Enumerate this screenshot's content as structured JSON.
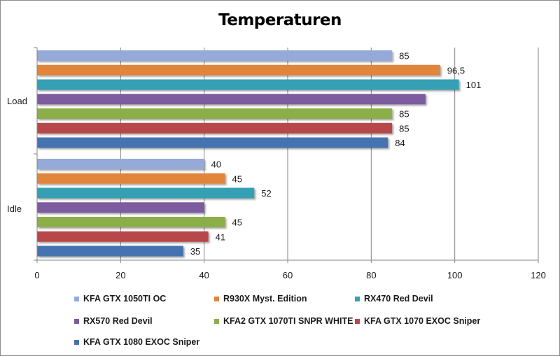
{
  "chart_data": {
    "type": "bar",
    "orientation": "horizontal",
    "title": "Temperaturen",
    "categories": [
      "Load",
      "Idle"
    ],
    "series": [
      {
        "name": "KFA GTX 1050TI OC",
        "color": "#95aad8",
        "values": [
          85,
          40
        ],
        "labels": [
          "85",
          "40"
        ]
      },
      {
        "name": "R930X Myst. Edition",
        "color": "#e1853d",
        "values": [
          96.5,
          45
        ],
        "labels": [
          "96,5",
          "45"
        ]
      },
      {
        "name": "RX470 Red Devil",
        "color": "#35a0b3",
        "values": [
          101,
          52
        ],
        "labels": [
          "101",
          "52"
        ]
      },
      {
        "name": "RX570 Red Devil",
        "color": "#7b5b9e",
        "values": [
          93,
          40
        ],
        "labels": [
          "",
          ""
        ]
      },
      {
        "name": "KFA2 GTX 1070TI SNPR WHITE",
        "color": "#8cae4a",
        "values": [
          85,
          45
        ],
        "labels": [
          "85",
          "45"
        ]
      },
      {
        "name": "KFA GTX 1070 EXOC Sniper",
        "color": "#b8464a",
        "values": [
          85,
          41
        ],
        "labels": [
          "85",
          "41"
        ]
      },
      {
        "name": "KFA GTX 1080 EXOC Sniper",
        "color": "#4572b0",
        "values": [
          84,
          35
        ],
        "labels": [
          "84",
          "35"
        ]
      }
    ],
    "xlim": [
      0,
      120
    ],
    "xticks": [
      0,
      20,
      40,
      60,
      80,
      100,
      120
    ],
    "xlabel": "",
    "ylabel": "",
    "grid": true,
    "legend": "bottom"
  }
}
